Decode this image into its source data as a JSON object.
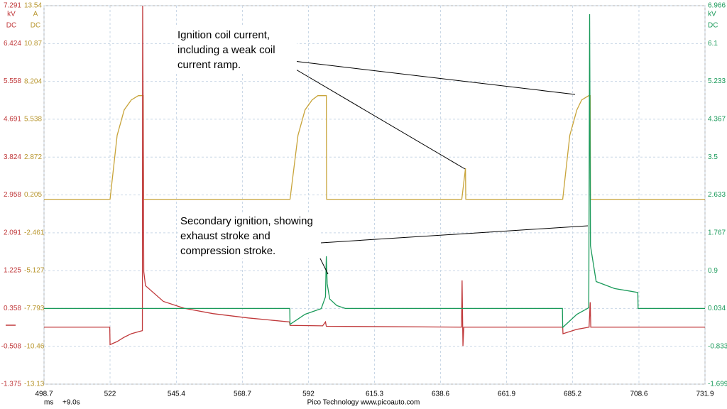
{
  "chart_data": {
    "type": "line",
    "xlim": [
      498.7,
      731.9
    ],
    "xticks": [
      498.7,
      522.0,
      545.4,
      568.7,
      592.0,
      615.3,
      638.6,
      661.9,
      685.2,
      708.6,
      731.9
    ],
    "x_unit": "ms",
    "x_offset": "+9.0s",
    "footer": "Pico Technology   www.picoauto.com",
    "grid": true,
    "ylim": [
      -1.375,
      7.291
    ],
    "yticks": [
      -1.375,
      -0.508,
      0.358,
      1.225,
      2.091,
      2.958,
      3.824,
      4.691,
      5.558,
      6.424,
      7.291
    ],
    "y_unit": "kV",
    "y_coupling": "DC",
    "ycolor": "#c0393b",
    "y3lim": [
      -13.13,
      13.54
    ],
    "y3ticks": [
      -13.13,
      -10.46,
      -7.793,
      -5.127,
      -2.461,
      0.205,
      2.872,
      5.538,
      8.204,
      10.87,
      13.54
    ],
    "y3_unit": "A",
    "y3_coupling": "DC",
    "y3color": "#b8962e",
    "y2lim": [
      -1.699,
      6.966
    ],
    "y2ticks": [
      -1.699,
      -0.833,
      0.034,
      0.9,
      1.767,
      2.633,
      3.5,
      4.367,
      5.233,
      6.1,
      6.966
    ],
    "y2_unit": "kV",
    "y2_coupling": "DC",
    "y2color": "#1a9a5a",
    "series": [
      {
        "axis": "y3",
        "color": "#c8a43a",
        "x": [
          498.7,
          522.0,
          524.5,
          527.0,
          529.5,
          532.0,
          533.7,
          533.8,
          585.5,
          588.3,
          590.8,
          593.3,
          595.3,
          598.3,
          598.4,
          646.1,
          647.4,
          647.5,
          681.7,
          684.2,
          686.7,
          688.4,
          690.9,
          691.4,
          691.5,
          731.9
        ],
        "values": [
          -0.1,
          -0.1,
          4.4,
          6.2,
          6.9,
          7.2,
          7.2,
          -0.1,
          -0.1,
          4.4,
          6.2,
          6.9,
          7.2,
          7.2,
          -0.1,
          -0.1,
          2.08,
          -0.1,
          -0.1,
          4.4,
          6.2,
          6.9,
          7.2,
          7.2,
          -0.1,
          -0.1
        ]
      },
      {
        "axis": "y",
        "color": "#c0393b",
        "x": [
          498.7,
          521.9,
          522.0,
          524.5,
          527.0,
          529.5,
          533.4,
          533.5,
          533.7,
          533.9,
          534.5,
          540.8,
          548.3,
          558.3,
          570.8,
          585.3,
          585.5,
          597.0,
          598.0,
          598.3,
          646.0,
          646.2,
          646.5,
          646.8,
          681.7,
          681.8,
          686.7,
          691.0,
          691.4,
          691.6,
          731.9
        ],
        "values": [
          -0.07,
          -0.07,
          -0.47,
          -0.4,
          -0.3,
          -0.22,
          -0.15,
          7.29,
          4.46,
          1.2,
          0.88,
          0.52,
          0.36,
          0.24,
          0.14,
          0.05,
          -0.03,
          -0.04,
          0.05,
          -0.05,
          -0.07,
          1.0,
          -0.5,
          -0.07,
          -0.07,
          -0.22,
          -0.12,
          -0.07,
          0.5,
          -0.07,
          -0.07
        ]
      },
      {
        "axis": "y2",
        "color": "#1a9a5a",
        "x": [
          498.7,
          585.4,
          585.5,
          590.8,
          596.5,
          598.0,
          598.3,
          598.6,
          599.5,
          602.0,
          605.0,
          681.6,
          681.7,
          686.7,
          690.9,
          691.2,
          691.5,
          693.5,
          700.0,
          708.2,
          708.3,
          731.9
        ],
        "values": [
          0.034,
          0.034,
          -0.33,
          -0.1,
          0.03,
          0.3,
          1.23,
          0.6,
          0.25,
          0.1,
          0.034,
          0.034,
          -0.4,
          -0.1,
          0.05,
          6.77,
          1.47,
          0.65,
          0.49,
          0.4,
          0.034,
          0.034
        ]
      }
    ],
    "annotations": [
      {
        "lines": [
          "Ignition coil current,",
          "including a weak coil",
          "current ramp."
        ]
      },
      {
        "lines": [
          "Secondary ignition, showing",
          "exhaust stroke and",
          "compression stroke."
        ]
      }
    ]
  }
}
